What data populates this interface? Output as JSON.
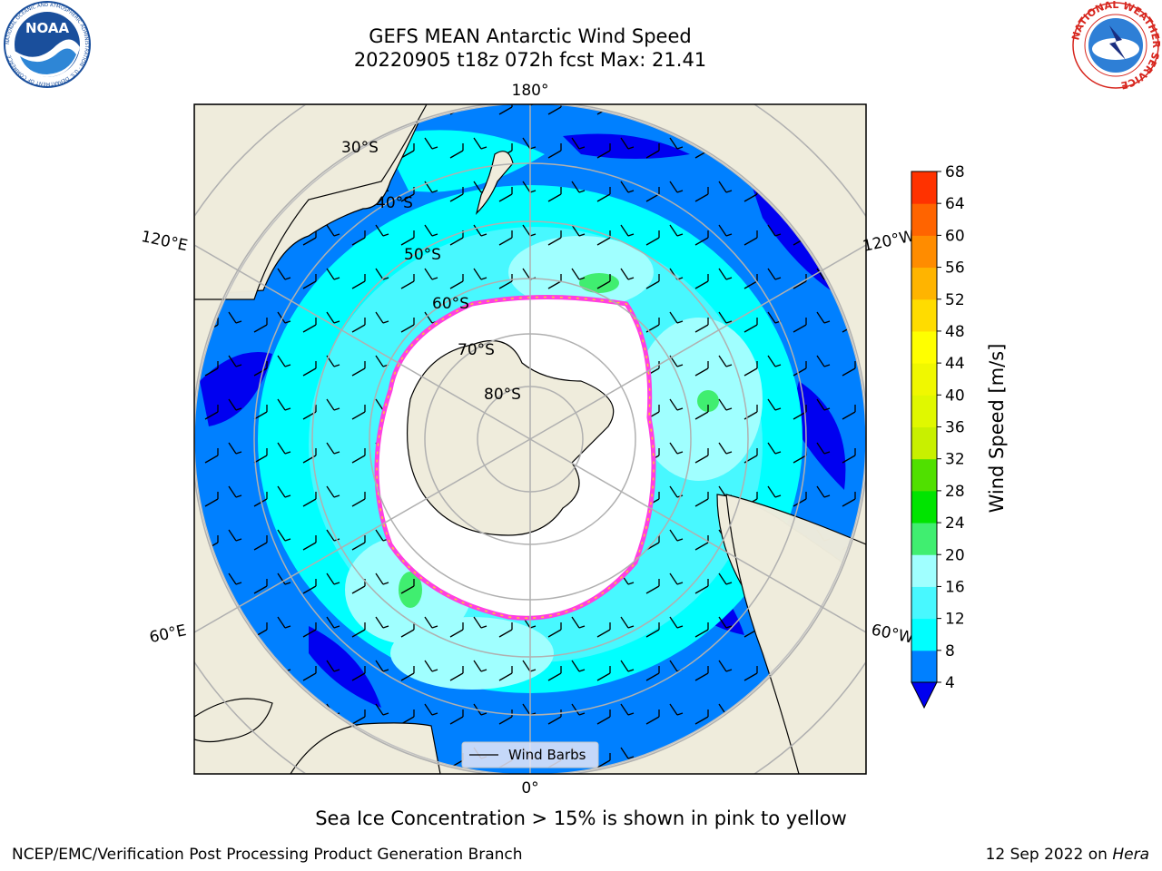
{
  "header": {
    "title_line1": "GEFS MEAN Antarctic Wind Speed",
    "title_line2": "20220905 t18z 072h fcst   Max: 21.41"
  },
  "logos": {
    "left": {
      "text": "NOAA",
      "ring_text": "NATIONAL OCEANIC AND ATMOSPHERIC ADMINISTRATION · U.S. DEPARTMENT OF COMMERCE",
      "color": "#1a4f9c"
    },
    "right": {
      "ring_text": "NATIONAL WEATHER SERVICE",
      "color": "#d7261e"
    }
  },
  "map": {
    "projection": "south-polar-stereographic",
    "longitude_labels": {
      "top": "180°",
      "bottom": "0°",
      "upper_left": "120°E",
      "upper_right": "120°W",
      "lower_left": "60°E",
      "lower_right": "60°W"
    },
    "latitude_labels": [
      "30°S",
      "40°S",
      "50°S",
      "60°S",
      "70°S",
      "80°S"
    ],
    "legend_label": "Wind Barbs",
    "colors": {
      "land": "#efecdc",
      "ocean_4": "#0080ff",
      "ocean_0": "#0000f0",
      "ocean_8": "#00ffff",
      "ocean_12": "#40f8ff",
      "ocean_16": "#a0ffff",
      "ice_edge": "#ff40e0",
      "ice_yellow": "#ffc830",
      "green": "#40ee70"
    }
  },
  "colorbar": {
    "label": "Wind Speed [m/s]",
    "ticks": [
      "4",
      "8",
      "12",
      "16",
      "20",
      "24",
      "28",
      "32",
      "36",
      "40",
      "44",
      "48",
      "52",
      "56",
      "60",
      "64",
      "68"
    ],
    "colors": [
      "#0080ff",
      "#00ffff",
      "#48f8ff",
      "#a0ffff",
      "#40ee70",
      "#00e400",
      "#50e000",
      "#c8f000",
      "#e0f800",
      "#f0f800",
      "#ffff00",
      "#ffdc00",
      "#ffb400",
      "#ff8c00",
      "#ff6400",
      "#ff3200",
      "#ff0000"
    ],
    "under_color": "#0000f0"
  },
  "caption": "Sea Ice Concentration > 15% is shown in pink to yellow",
  "footer": {
    "left": "NCEP/EMC/Verification Post Processing Product Generation Branch",
    "right_prefix": "12 Sep 2022 on ",
    "right_host": "Hera"
  }
}
